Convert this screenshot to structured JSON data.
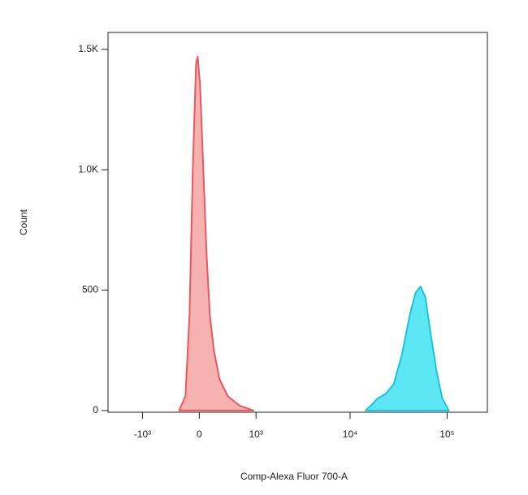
{
  "chart_data": {
    "type": "area",
    "x_label": "Comp-Alexa Fluor 700-A",
    "y_label": "Count",
    "xscale": "biexponential",
    "xlim": [
      -2400,
      260000
    ],
    "ylim": [
      -7,
      1570
    ],
    "xticks": [
      {
        "value": -1000,
        "label": "-10³"
      },
      0,
      {
        "value": 1000,
        "label": "10³"
      },
      {
        "value": 10000,
        "label": "10⁴"
      },
      {
        "value": 100000,
        "label": "10⁵"
      }
    ],
    "yticks": [
      0,
      500,
      {
        "value": 1000,
        "label": "1.0K"
      },
      {
        "value": 1500,
        "label": "1.5K"
      }
    ],
    "series": [
      {
        "color": "#e8585f",
        "fill": "#f4a3a3",
        "x": [
          -278,
          -186,
          -130,
          -86,
          -43,
          -21,
          11,
          54,
          97,
          141,
          197,
          279,
          405,
          622,
          935
        ],
        "values": [
          0,
          60,
          400,
          1000,
          1440,
          1470,
          1350,
          1000,
          650,
          400,
          250,
          130,
          60,
          20,
          0
        ]
      },
      {
        "color": "#1fc3d8",
        "fill": "#3fe3f3",
        "x": [
          14400,
          16800,
          19200,
          23300,
          28200,
          34100,
          41400,
          47400,
          53200,
          59700,
          67000,
          78100,
          89300,
          104000
        ],
        "values": [
          0,
          25,
          50,
          70,
          110,
          230,
          400,
          490,
          515,
          470,
          330,
          160,
          50,
          0
        ]
      }
    ]
  }
}
